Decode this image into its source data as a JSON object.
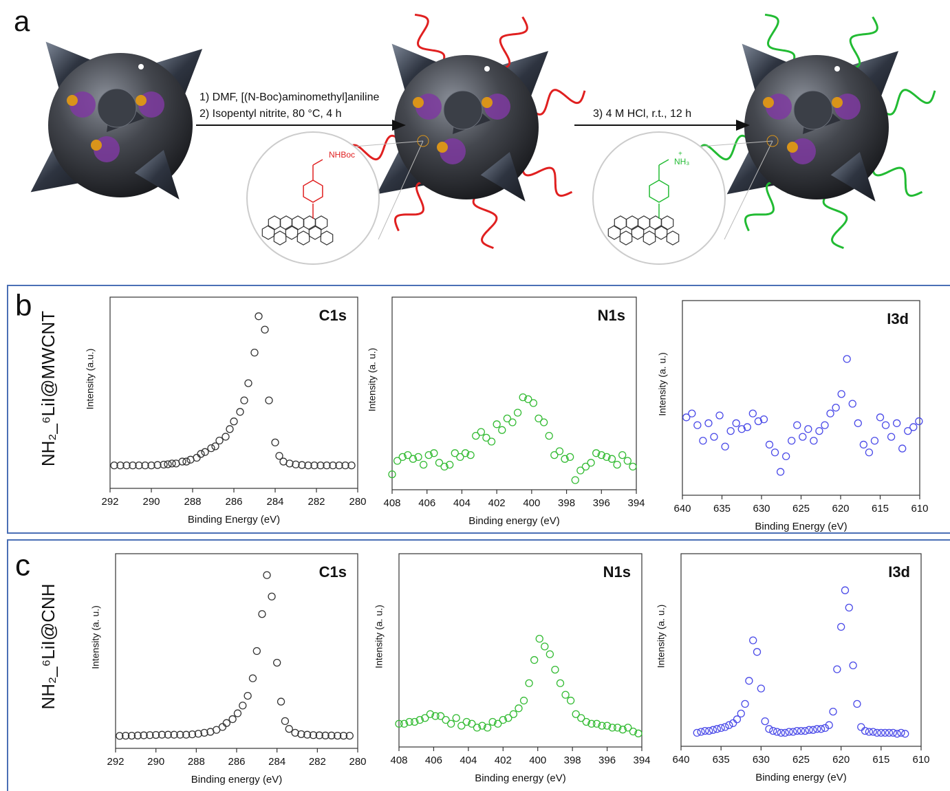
{
  "diagram": {
    "label": "a",
    "step1_line1": "1) DMF, [(N-Boc)aminomethyl]aniline",
    "step1_line2": "2) Isopentyl nitrite, 80 °C, 4 h",
    "step2": "3) 4 M HCl, r.t., 12 h",
    "group_boc": "NHBoc",
    "group_amine": "NH₃",
    "charge": "+"
  },
  "panels": [
    {
      "label": "b",
      "row_label": "NH₂_⁶LiI@MWCNT"
    },
    {
      "label": "c",
      "row_label": "NH₂_⁶LiI@CNH"
    }
  ],
  "chart_data": [
    {
      "type": "scatter",
      "title": "C1s",
      "xlabel": "Binding Energy (eV)",
      "ylabel": "Intensity (a.u.)",
      "color": "#333333",
      "xlim": [
        292,
        280
      ],
      "xticks": [
        292,
        290,
        288,
        286,
        284,
        282,
        280
      ],
      "ylim": [
        0,
        100
      ],
      "x": [
        291.8,
        291.5,
        291.2,
        290.9,
        290.6,
        290.3,
        290.0,
        289.7,
        289.4,
        289.2,
        289.0,
        288.8,
        288.5,
        288.3,
        288.1,
        287.8,
        287.6,
        287.4,
        287.1,
        286.9,
        286.7,
        286.4,
        286.2,
        286.0,
        285.7,
        285.5,
        285.3,
        285.0,
        284.8,
        284.5,
        284.3,
        284.0,
        283.8,
        283.6,
        283.3,
        283.0,
        282.7,
        282.4,
        282.1,
        281.8,
        281.5,
        281.2,
        280.9,
        280.6,
        280.3
      ],
      "values": [
        12,
        12,
        12,
        12,
        12,
        12,
        12,
        12.2,
        12.4,
        12.6,
        13,
        13,
        14,
        14,
        15,
        16,
        18,
        19,
        21,
        22,
        25,
        27,
        31,
        35,
        40,
        46,
        55,
        71,
        90,
        83,
        46,
        24,
        17,
        14,
        13,
        12.5,
        12.2,
        12,
        12,
        12,
        12,
        12,
        12,
        12,
        12
      ]
    },
    {
      "type": "scatter",
      "title": "N1s",
      "xlabel": "Binding energy (eV)",
      "ylabel": "Intensity (a. u.)",
      "color": "#33bb33",
      "xlim": [
        408,
        394
      ],
      "xticks": [
        408,
        406,
        404,
        402,
        400,
        398,
        396,
        394
      ],
      "ylim": [
        0,
        100
      ],
      "x": [
        408.0,
        407.7,
        407.4,
        407.1,
        406.8,
        406.5,
        406.2,
        405.9,
        405.6,
        405.3,
        405.0,
        404.7,
        404.4,
        404.1,
        403.8,
        403.5,
        403.2,
        402.9,
        402.6,
        402.3,
        402.0,
        401.7,
        401.4,
        401.1,
        400.8,
        400.5,
        400.2,
        399.9,
        399.6,
        399.3,
        399.0,
        398.7,
        398.4,
        398.1,
        397.8,
        397.5,
        397.2,
        396.9,
        396.6,
        396.3,
        396.0,
        395.7,
        395.4,
        395.1,
        394.8,
        394.5,
        394.2
      ],
      "values": [
        8,
        15,
        17,
        18,
        16,
        17,
        13,
        18,
        19,
        14,
        12,
        13,
        19,
        17,
        19,
        18,
        28,
        30,
        27,
        25,
        34,
        31,
        37,
        35,
        40,
        48,
        47,
        45,
        37,
        35,
        28,
        18,
        20,
        16,
        17,
        5,
        10,
        12,
        14,
        19,
        18,
        17,
        16,
        13,
        18,
        15,
        12
      ]
    },
    {
      "type": "scatter",
      "title": "I3d",
      "xlabel": "Binding Energy (eV)",
      "ylabel": "Intensity (a. u.)",
      "color": "#4a4ae8",
      "xlim": [
        640,
        610
      ],
      "xticks": [
        640,
        635,
        630,
        625,
        620,
        615,
        610
      ],
      "ylim": [
        0,
        100
      ],
      "x": [
        639.5,
        638.8,
        638.1,
        637.4,
        636.7,
        636.0,
        635.3,
        634.6,
        633.9,
        633.2,
        632.5,
        631.8,
        631.1,
        630.4,
        629.7,
        629.0,
        628.3,
        627.6,
        626.9,
        626.2,
        625.5,
        624.8,
        624.1,
        623.4,
        622.7,
        622.0,
        621.3,
        620.6,
        619.9,
        619.2,
        618.5,
        617.8,
        617.1,
        616.4,
        615.7,
        615.0,
        614.3,
        613.6,
        612.9,
        612.2,
        611.5,
        610.8,
        610.1
      ],
      "values": [
        40,
        42,
        36,
        28,
        37,
        30,
        41,
        25,
        33,
        37,
        34,
        35,
        42,
        38,
        39,
        26,
        22,
        12,
        20,
        28,
        36,
        30,
        34,
        28,
        33,
        36,
        42,
        45,
        52,
        70,
        47,
        37,
        26,
        22,
        28,
        40,
        36,
        30,
        37,
        24,
        33,
        35,
        38
      ]
    },
    {
      "type": "scatter",
      "title": "C1s",
      "xlabel": "Binding energy (eV)",
      "ylabel": "Intensity (a. u.)",
      "color": "#333333",
      "xlim": [
        292,
        280
      ],
      "xticks": [
        292,
        290,
        288,
        286,
        284,
        282,
        280
      ],
      "ylim": [
        0,
        100
      ],
      "x": [
        291.8,
        291.5,
        291.2,
        290.9,
        290.6,
        290.3,
        290.0,
        289.7,
        289.4,
        289.1,
        288.8,
        288.5,
        288.2,
        287.9,
        287.6,
        287.3,
        287.0,
        286.7,
        286.5,
        286.2,
        285.95,
        285.7,
        285.45,
        285.2,
        285.0,
        284.74,
        284.5,
        284.26,
        284.0,
        283.8,
        283.6,
        283.4,
        283.1,
        282.8,
        282.5,
        282.2,
        281.9,
        281.6,
        281.3,
        281.0,
        280.7,
        280.4
      ],
      "values": [
        6.4,
        6.5,
        6.5,
        6.6,
        6.7,
        6.8,
        6.9,
        7,
        7,
        7,
        7,
        7,
        7.2,
        7.5,
        8,
        8.5,
        9.5,
        11,
        13,
        15,
        18,
        22,
        27,
        36,
        50,
        69,
        89,
        78,
        44,
        24,
        14,
        10,
        8,
        7.3,
        7,
        6.8,
        6.7,
        6.6,
        6.6,
        6.5,
        6.5,
        6.5
      ]
    },
    {
      "type": "scatter",
      "title": "N1s",
      "xlabel": "Binding energy (eV)",
      "ylabel": "Intensity (a. u.)",
      "color": "#33bb33",
      "xlim": [
        408,
        394
      ],
      "xticks": [
        408,
        406,
        404,
        402,
        400,
        398,
        396,
        394
      ],
      "ylim": [
        0,
        100
      ],
      "x": [
        408.0,
        407.7,
        407.4,
        407.1,
        406.8,
        406.5,
        406.2,
        405.9,
        405.6,
        405.3,
        405.0,
        404.7,
        404.4,
        404.1,
        403.8,
        403.5,
        403.2,
        402.9,
        402.6,
        402.3,
        402.0,
        401.7,
        401.4,
        401.1,
        400.8,
        400.5,
        400.2,
        399.9,
        399.6,
        399.3,
        399.0,
        398.7,
        398.4,
        398.1,
        397.8,
        397.5,
        397.2,
        396.9,
        396.6,
        396.3,
        396.0,
        395.7,
        395.4,
        395.1,
        394.8,
        394.5,
        394.2
      ],
      "values": [
        12,
        12,
        13,
        13,
        14,
        15,
        17,
        16,
        16,
        14,
        12,
        15,
        11,
        13,
        12,
        10,
        11,
        10,
        13,
        12,
        14,
        15,
        17,
        20,
        24,
        33,
        45,
        56,
        52,
        48,
        40,
        33,
        27,
        24,
        17,
        15,
        13,
        12,
        12,
        11,
        11,
        10,
        10,
        9,
        10,
        8,
        7
      ]
    },
    {
      "type": "scatter",
      "title": "I3d",
      "xlabel": "Binding energy (eV)",
      "ylabel": "Intensity (a. u.)",
      "color": "#4a4ae8",
      "xlim": [
        640,
        610
      ],
      "xticks": [
        640,
        635,
        630,
        625,
        620,
        615,
        610
      ],
      "ylim": [
        0,
        100
      ],
      "x": [
        638.0,
        637.5,
        637.0,
        636.5,
        636.0,
        635.5,
        635.0,
        634.5,
        634.0,
        633.5,
        633.0,
        632.5,
        632.0,
        631.5,
        631.0,
        630.5,
        630.0,
        629.5,
        629.0,
        628.5,
        628.0,
        627.5,
        627.0,
        626.5,
        626.0,
        625.5,
        625.0,
        624.5,
        624.0,
        623.5,
        623.0,
        622.5,
        622.0,
        621.5,
        621.0,
        620.5,
        620.0,
        619.5,
        619.0,
        618.5,
        618.0,
        617.5,
        617.0,
        616.5,
        616.0,
        615.5,
        615.0,
        614.5,
        614.0,
        613.5,
        613.0,
        612.5,
        612.0
      ],
      "values": [
        7,
        7.5,
        8,
        8,
        8.5,
        9,
        9.5,
        10,
        11,
        12,
        14,
        17,
        22,
        34,
        55,
        49,
        30,
        13,
        9,
        8,
        7.5,
        7,
        7,
        7.5,
        7.5,
        8,
        8,
        8,
        8.5,
        8.5,
        9,
        9,
        9.5,
        11,
        18,
        40,
        62,
        81,
        72,
        42,
        22,
        10,
        8,
        7.5,
        7.5,
        7,
        7,
        7,
        7,
        7,
        6.5,
        7,
        6.5
      ]
    }
  ]
}
